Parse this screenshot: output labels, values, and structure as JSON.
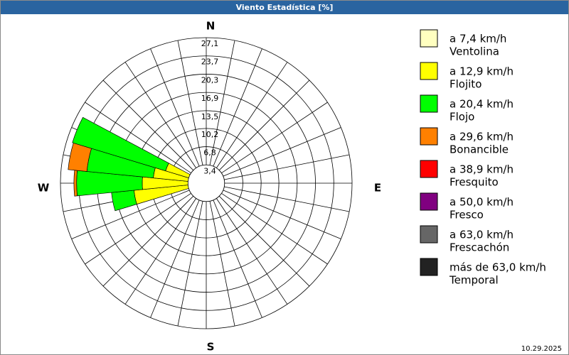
{
  "chart_data": {
    "type": "wind_rose",
    "title": "Viento Estadística [%]",
    "date": "10.29.2025",
    "compass": [
      "N",
      "E",
      "S",
      "W"
    ],
    "directions": [
      258.75,
      270,
      281.25,
      292.5
    ],
    "sector_width": 11.25,
    "rlim": [
      0,
      27.1
    ],
    "rticks": [
      {
        "value": 3.4,
        "label": "3,4"
      },
      {
        "value": 6.8,
        "label": "6,8"
      },
      {
        "value": 10.2,
        "label": "10,2"
      },
      {
        "value": 13.5,
        "label": "13,5"
      },
      {
        "value": 16.9,
        "label": "16,9"
      },
      {
        "value": 20.3,
        "label": "20,3"
      },
      {
        "value": 23.7,
        "label": "23,7"
      },
      {
        "value": 27.1,
        "label": "27,1"
      }
    ],
    "spokes": 32,
    "series": [
      {
        "name": "a 7,4 km/h",
        "description": "Ventolina",
        "color": "#ffffc0",
        "values": [
          0.3,
          0.3,
          0.3,
          0.3
        ]
      },
      {
        "name": "a 12,9 km/h",
        "description": "Flojito",
        "color": "#ffff00",
        "values": [
          13.2,
          11.6,
          9.6,
          7.6
        ]
      },
      {
        "name": "a 20,4 km/h",
        "description": "Flojo",
        "color": "#00ff00",
        "values": [
          4.2,
          12.2,
          12.4,
          18.1
        ]
      },
      {
        "name": "a 29,6 km/h",
        "description": "Bonancible",
        "color": "#ff8000",
        "values": [
          0,
          0.5,
          3.5,
          0
        ]
      },
      {
        "name": "a 38,9 km/h",
        "description": "Fresquito",
        "color": "#ff0000",
        "values": [
          0,
          0,
          0,
          0
        ]
      },
      {
        "name": "a 50,0 km/h",
        "description": "Fresco",
        "color": "#800080",
        "values": [
          0,
          0,
          0,
          0
        ]
      },
      {
        "name": "a 63,0 km/h",
        "description": "Frescachón",
        "color": "#666666",
        "values": [
          0,
          0,
          0,
          0
        ]
      },
      {
        "name": "más de 63,0 km/h",
        "description": "Temporal",
        "color": "#222222",
        "values": [
          0,
          0,
          0,
          0
        ]
      }
    ]
  }
}
